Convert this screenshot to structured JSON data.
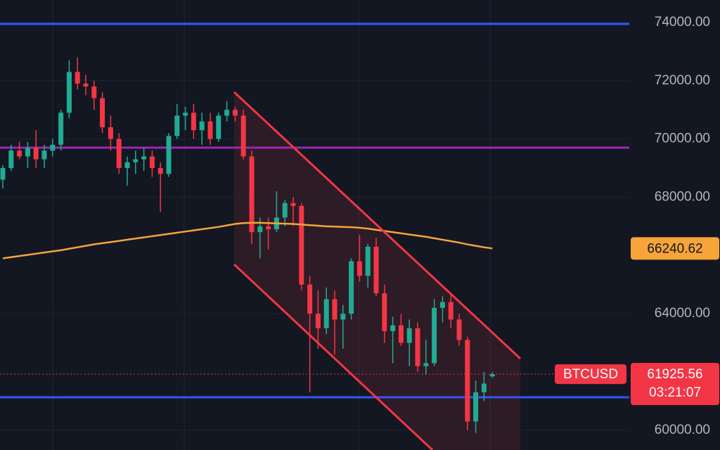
{
  "chart_data": {
    "type": "candlestick",
    "symbol": "BTCUSD",
    "countdown": "03:21:07",
    "up_color": "#22ab94",
    "down_color": "#f23645",
    "ma_color": "#f7a43b",
    "ylim": [
      59320,
      74770
    ],
    "yticks": [
      {
        "value": 60000,
        "label": "60000.00"
      },
      {
        "value": 64000,
        "label": "64000.00"
      },
      {
        "value": 68000,
        "label": "68000.00"
      },
      {
        "value": 70000,
        "label": "70000.00"
      },
      {
        "value": 72000,
        "label": "72000.00"
      },
      {
        "value": 74000,
        "label": "74000.00"
      }
    ],
    "grid": true,
    "hlines": [
      {
        "value": 73950,
        "color": "#3355ff"
      },
      {
        "value": 69700,
        "color": "#9c27b0"
      },
      {
        "value": 61130,
        "color": "#3355ff"
      }
    ],
    "ohlc": [
      [
        68600,
        69100,
        68300,
        69000
      ],
      [
        69000,
        69800,
        68900,
        69600
      ],
      [
        69600,
        69900,
        69300,
        69400
      ],
      [
        69400,
        69900,
        69000,
        69700
      ],
      [
        69700,
        70300,
        69000,
        69300
      ],
      [
        69300,
        69800,
        69000,
        69600
      ],
      [
        69600,
        70000,
        69400,
        69800
      ],
      [
        69800,
        71000,
        69600,
        70900
      ],
      [
        70900,
        72700,
        70700,
        72300
      ],
      [
        72300,
        72800,
        71700,
        71900
      ],
      [
        71900,
        72200,
        71500,
        71800
      ],
      [
        71800,
        72000,
        71000,
        71400
      ],
      [
        71400,
        71600,
        70200,
        70400
      ],
      [
        70400,
        70800,
        69600,
        70000
      ],
      [
        70000,
        70200,
        68800,
        69000
      ],
      [
        69000,
        69400,
        68400,
        69200
      ],
      [
        69200,
        69600,
        68800,
        69300
      ],
      [
        69300,
        69700,
        68900,
        69400
      ],
      [
        69400,
        69600,
        68700,
        69000
      ],
      [
        69000,
        69200,
        67500,
        68800
      ],
      [
        68800,
        70200,
        68700,
        70100
      ],
      [
        70100,
        71200,
        70000,
        70800
      ],
      [
        70800,
        71100,
        70300,
        70900
      ],
      [
        70900,
        71200,
        70000,
        70300
      ],
      [
        70300,
        70900,
        69800,
        70600
      ],
      [
        70600,
        70900,
        69800,
        70000
      ],
      [
        70000,
        70900,
        69900,
        70800
      ],
      [
        70800,
        71300,
        70600,
        71000
      ],
      [
        71000,
        71100,
        70600,
        70800
      ],
      [
        70800,
        71000,
        69300,
        69400
      ],
      [
        69400,
        69600,
        66400,
        66800
      ],
      [
        66800,
        67300,
        65900,
        67000
      ],
      [
        67000,
        67300,
        66200,
        66900
      ],
      [
        66900,
        68200,
        66800,
        67300
      ],
      [
        67300,
        67900,
        67000,
        67800
      ],
      [
        67800,
        68000,
        67000,
        67700
      ],
      [
        67700,
        67800,
        64800,
        65000
      ],
      [
        65000,
        65300,
        61300,
        64000
      ],
      [
        64000,
        64800,
        62800,
        63500
      ],
      [
        63500,
        64900,
        63300,
        64500
      ],
      [
        64500,
        64800,
        62600,
        63800
      ],
      [
        63800,
        64300,
        62800,
        64000
      ],
      [
        64000,
        65900,
        63800,
        65800
      ],
      [
        65800,
        66700,
        65100,
        65300
      ],
      [
        65300,
        66400,
        64900,
        66300
      ],
      [
        66300,
        66600,
        64600,
        64700
      ],
      [
        64700,
        65000,
        63000,
        63400
      ],
      [
        63400,
        63900,
        62300,
        63600
      ],
      [
        63600,
        64000,
        62900,
        63000
      ],
      [
        63000,
        63800,
        62200,
        63500
      ],
      [
        63500,
        63700,
        62000,
        62200
      ],
      [
        62200,
        63100,
        61900,
        62300
      ],
      [
        62300,
        64500,
        62200,
        64200
      ],
      [
        64200,
        64600,
        63700,
        64400
      ],
      [
        64400,
        64700,
        63500,
        63800
      ],
      [
        63800,
        64000,
        62900,
        63100
      ],
      [
        63100,
        63200,
        60000,
        60300
      ],
      [
        60300,
        61700,
        59900,
        61300
      ],
      [
        61300,
        62000,
        61000,
        61600
      ],
      [
        61850,
        62000,
        61800,
        61925.56
      ]
    ],
    "ma": [
      65900,
      65940,
      65980,
      66020,
      66060,
      66100,
      66140,
      66180,
      66230,
      66280,
      66330,
      66380,
      66420,
      66460,
      66500,
      66540,
      66580,
      66620,
      66660,
      66700,
      66740,
      66780,
      66820,
      66860,
      66900,
      66940,
      66980,
      67030,
      67080,
      67110,
      67120,
      67120,
      67110,
      67100,
      67090,
      67080,
      67060,
      67040,
      67020,
      67000,
      66990,
      66980,
      66970,
      66950,
      66920,
      66880,
      66840,
      66800,
      66760,
      66720,
      66680,
      66640,
      66590,
      66540,
      66490,
      66440,
      66380,
      66330,
      66280,
      66240.62
    ]
  }
}
